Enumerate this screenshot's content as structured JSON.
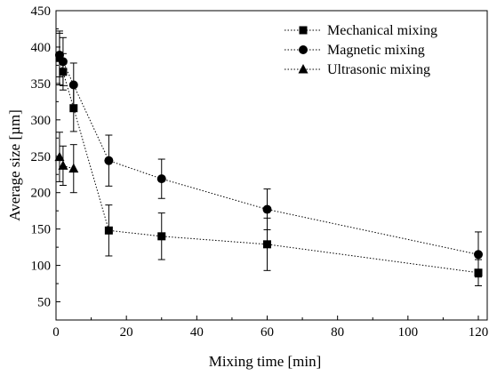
{
  "chart_data": {
    "type": "scatter",
    "title": "",
    "xlabel": "Mixing time [min]",
    "ylabel": "Average size [µm]",
    "xlim": [
      0,
      120
    ],
    "ylim": [
      25,
      450
    ],
    "xticks": [
      0,
      20,
      40,
      60,
      80,
      100,
      120
    ],
    "yticks": [
      50,
      100,
      150,
      200,
      250,
      300,
      350,
      400,
      450
    ],
    "grid": false,
    "legend_position": "top-right",
    "line_style": "dotted",
    "series": [
      {
        "name": "Mechanical mixing",
        "marker": "square",
        "x": [
          1,
          2,
          5,
          15,
          30,
          60,
          120
        ],
        "y": [
          385,
          366,
          316,
          148,
          140,
          129,
          90
        ],
        "err": [
          37,
          25,
          32,
          35,
          32,
          36,
          18
        ]
      },
      {
        "name": "Magnetic mixing",
        "marker": "circle",
        "x": [
          1,
          2,
          5,
          15,
          30,
          60,
          120
        ],
        "y": [
          389,
          380,
          348,
          244,
          219,
          177,
          115
        ],
        "err": [
          30,
          33,
          30,
          35,
          27,
          28,
          31
        ]
      },
      {
        "name": "Ultrasonic mixing",
        "marker": "triangle",
        "x": [
          1,
          2,
          5
        ],
        "y": [
          249,
          237,
          233
        ],
        "err": [
          34,
          27,
          33
        ]
      }
    ]
  }
}
